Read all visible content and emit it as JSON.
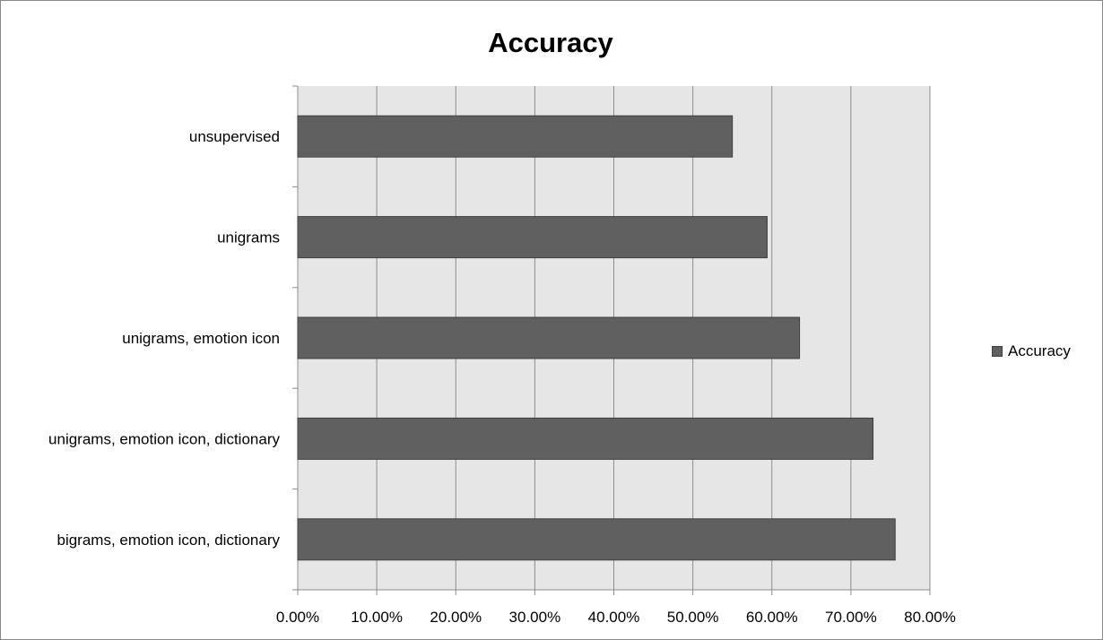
{
  "chart_data": {
    "type": "bar",
    "orientation": "horizontal",
    "title": "Accuracy",
    "xlabel": "",
    "ylabel": "",
    "categories": [
      "unsupervised",
      "unigrams",
      "unigrams, emotion icon",
      "unigrams, emotion icon, dictionary",
      "bigrams, emotion icon, dictionary"
    ],
    "series": [
      {
        "name": "Accuracy",
        "values": [
          0.55,
          0.594,
          0.635,
          0.728,
          0.756
        ]
      }
    ],
    "xlim": [
      0,
      0.8
    ],
    "x_ticks": [
      0,
      0.1,
      0.2,
      0.3,
      0.4,
      0.5,
      0.6,
      0.7,
      0.8
    ],
    "x_tick_labels": [
      "0.00%",
      "10.00%",
      "20.00%",
      "30.00%",
      "40.00%",
      "50.00%",
      "60.00%",
      "70.00%",
      "80.00%"
    ],
    "grid": "vertical",
    "legend_position": "right",
    "colors": {
      "bar": "#606060",
      "bar_border": "#404040",
      "plot_background": "#e6e6e6",
      "grid": "#8c8c8c"
    }
  }
}
